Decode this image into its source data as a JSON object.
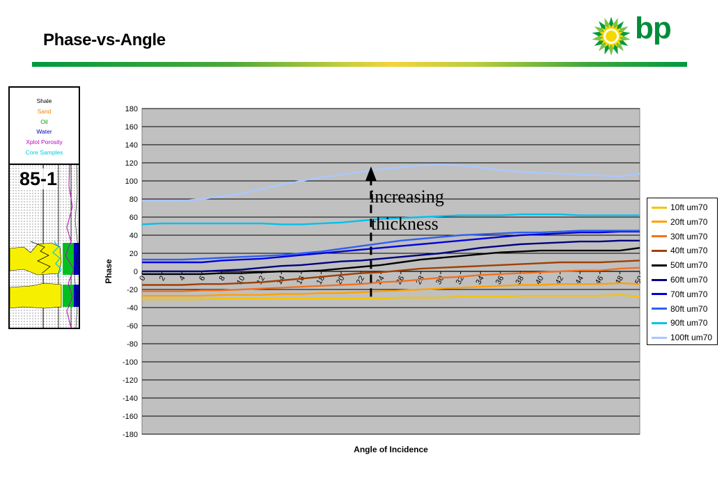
{
  "slide": {
    "title": "Phase-vs-Angle",
    "logo_text": "bp",
    "brand_green": "#009a3e",
    "brand_yellow": "#f5d33a"
  },
  "well_panel": {
    "legend": [
      {
        "label": "Shale",
        "color": "#000000"
      },
      {
        "label": "Sand",
        "color": "#f08000"
      },
      {
        "label": "Oil",
        "color": "#00a000"
      },
      {
        "label": "Water",
        "color": "#0000c0"
      },
      {
        "label": "Xplot Porosity",
        "color": "#c000c0"
      },
      {
        "label": "Core Samples",
        "color": "#00c8e0"
      }
    ],
    "well_label": "85-1"
  },
  "annotation": {
    "line1": "increasing",
    "line2": "thickness"
  },
  "chart_data": {
    "type": "line",
    "title": "",
    "xlabel": "Angle of Incidence",
    "ylabel": "Phase",
    "x": [
      0,
      2,
      4,
      6,
      8,
      10,
      12,
      14,
      16,
      18,
      20,
      22,
      24,
      26,
      28,
      30,
      32,
      34,
      36,
      38,
      40,
      42,
      44,
      46,
      48,
      50
    ],
    "ylim": [
      -180,
      180
    ],
    "yticks": [
      180,
      160,
      140,
      120,
      100,
      80,
      60,
      40,
      20,
      0,
      -20,
      -40,
      -60,
      -80,
      -100,
      -120,
      -140,
      -160,
      -180
    ],
    "xticks": [
      "0",
      "2",
      "4",
      "6",
      "8",
      "10",
      "12",
      "14",
      "16",
      "18",
      "20",
      "22",
      "24",
      "26",
      "28",
      "30",
      "32",
      "34",
      "36",
      "38",
      "40",
      "42",
      "44",
      "46",
      "48",
      "50"
    ],
    "grid": "horizontal",
    "plot_background": "#c0c0c0",
    "legend_position": "right",
    "series": [
      {
        "name": "10ft um70",
        "color": "#f5c400",
        "values": [
          -31,
          -31,
          -31,
          -31,
          -30,
          -30,
          -30,
          -30,
          -30,
          -30,
          -30,
          -30,
          -30,
          -29,
          -29,
          -29,
          -28,
          -28,
          -28,
          -27,
          -27,
          -27,
          -27,
          -27,
          -26,
          -28
        ]
      },
      {
        "name": "20ft um70",
        "color": "#ffa000",
        "values": [
          -27,
          -27,
          -27,
          -27,
          -26,
          -26,
          -26,
          -25,
          -25,
          -24,
          -24,
          -23,
          -22,
          -21,
          -20,
          -19,
          -18,
          -17,
          -16,
          -15,
          -15,
          -14,
          -14,
          -14,
          -13,
          -14
        ]
      },
      {
        "name": "30ft um70",
        "color": "#f07020",
        "values": [
          -22,
          -22,
          -22,
          -21,
          -21,
          -20,
          -19,
          -18,
          -17,
          -16,
          -15,
          -14,
          -12,
          -11,
          -9,
          -7,
          -6,
          -4,
          -3,
          -2,
          -1,
          0,
          1,
          1,
          3,
          4
        ]
      },
      {
        "name": "40ft um70",
        "color": "#a04000",
        "values": [
          -15,
          -15,
          -15,
          -14,
          -14,
          -13,
          -12,
          -10,
          -8,
          -6,
          -4,
          -2,
          -1,
          1,
          3,
          4,
          5,
          6,
          7,
          8,
          9,
          10,
          10,
          10,
          11,
          12
        ]
      },
      {
        "name": "50ft um70",
        "color": "#000000",
        "values": [
          -3,
          -3,
          -3,
          -3,
          -2,
          -2,
          -1,
          0,
          0,
          1,
          3,
          5,
          7,
          10,
          13,
          15,
          17,
          19,
          21,
          22,
          23,
          23,
          23,
          23,
          23,
          26
        ]
      },
      {
        "name": "60ft um70",
        "color": "#000080",
        "values": [
          0,
          0,
          0,
          0,
          1,
          2,
          4,
          6,
          7,
          9,
          11,
          12,
          14,
          16,
          18,
          20,
          23,
          26,
          28,
          30,
          31,
          32,
          33,
          33,
          34,
          34
        ]
      },
      {
        "name": "70ft um70",
        "color": "#0000dd",
        "values": [
          10,
          10,
          10,
          10,
          12,
          13,
          14,
          16,
          18,
          20,
          22,
          24,
          26,
          28,
          30,
          32,
          34,
          36,
          38,
          40,
          41,
          42,
          43,
          43,
          44,
          44
        ]
      },
      {
        "name": "80ft um70",
        "color": "#3060ee",
        "values": [
          13,
          13,
          13,
          14,
          15,
          16,
          17,
          18,
          20,
          22,
          25,
          28,
          31,
          34,
          36,
          38,
          40,
          41,
          42,
          43,
          43,
          44,
          45,
          45,
          45,
          45
        ]
      },
      {
        "name": "90ft um70",
        "color": "#00c0ee",
        "values": [
          52,
          53,
          53,
          53,
          53,
          53,
          53,
          52,
          52,
          53,
          54,
          56,
          58,
          59,
          60,
          61,
          62,
          62,
          62,
          63,
          63,
          63,
          62,
          62,
          62,
          62
        ]
      },
      {
        "name": "100ft um70",
        "color": "#a8c8ff",
        "values": [
          78,
          78,
          78,
          80,
          83,
          86,
          91,
          96,
          100,
          104,
          107,
          110,
          113,
          115,
          117,
          118,
          117,
          115,
          112,
          110,
          109,
          108,
          107,
          106,
          105,
          108
        ]
      }
    ]
  }
}
